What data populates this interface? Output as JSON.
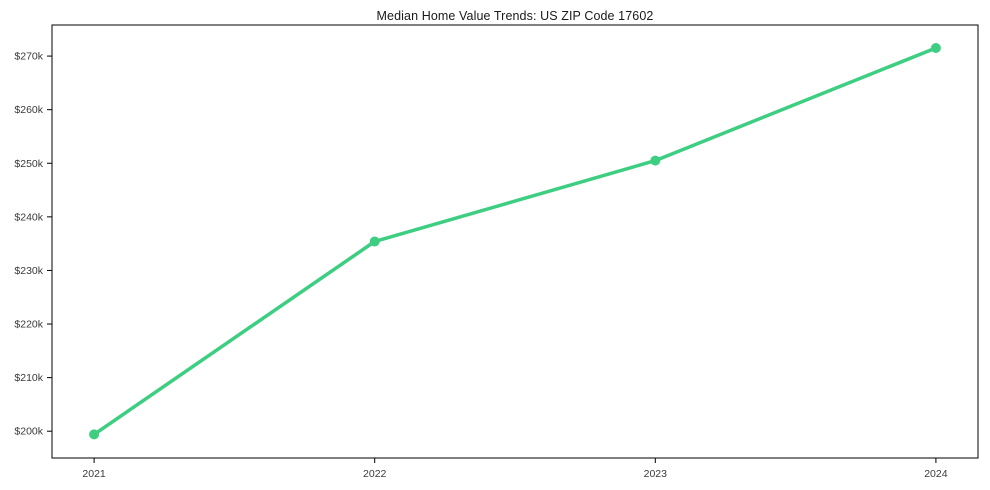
{
  "chart_data": {
    "type": "line",
    "title": "Median Home Value Trends: US ZIP Code 17602",
    "x": [
      2021,
      2022,
      2023,
      2024
    ],
    "x_tick_labels": [
      "2021",
      "2022",
      "2023",
      "2024"
    ],
    "series": [
      {
        "name": "Median Home Value",
        "values": [
          199400,
          235400,
          250500,
          271500
        ]
      }
    ],
    "xlabel": "",
    "ylabel": "",
    "y_ticks": [
      200000,
      210000,
      220000,
      230000,
      240000,
      250000,
      260000,
      270000
    ],
    "y_tick_labels": [
      "$200k",
      "$210k",
      "$220k",
      "$230k",
      "$240k",
      "$250k",
      "$260k",
      "$270k"
    ],
    "xlim": [
      2020.85,
      2024.15
    ],
    "ylim": [
      195000,
      275800
    ],
    "grid": false,
    "legend_position": "none",
    "line_color": "#3dce82",
    "marker_color": "#3dce82",
    "axis_color": "#000000",
    "tick_label_color": "#3a3a3a",
    "title_color": "#1a1a1a",
    "background_color": "#ffffff",
    "line_width": 3.5,
    "marker_radius": 5
  }
}
